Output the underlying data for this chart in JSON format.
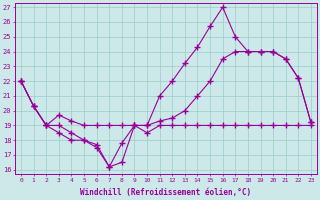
{
  "background_color": "#cce8e8",
  "grid_color": "#99cccc",
  "line_color": "#990099",
  "x_hours": [
    0,
    1,
    2,
    3,
    4,
    5,
    6,
    7,
    8,
    9,
    10,
    11,
    12,
    13,
    14,
    15,
    16,
    17,
    18,
    19,
    20,
    21,
    22,
    23
  ],
  "series1": [
    22,
    20.3,
    19.0,
    19.0,
    18.5,
    18.0,
    17.5,
    16.2,
    16.5,
    19.0,
    19.0,
    21.0,
    22.0,
    23.2,
    24.3,
    25.7,
    27.0,
    25.0,
    24.0,
    24.0,
    24.0,
    23.5,
    22.2,
    19.2
  ],
  "series2": [
    22,
    20.3,
    19.0,
    19.7,
    19.3,
    19.0,
    19.0,
    19.0,
    19.0,
    19.0,
    19.0,
    19.3,
    19.5,
    20.0,
    21.0,
    22.0,
    23.5,
    24.0,
    24.0,
    24.0,
    24.0,
    23.5,
    22.2,
    19.2
  ],
  "series3_x": [
    0,
    1,
    2,
    3,
    4,
    5,
    6,
    7,
    8,
    9,
    10,
    11,
    12,
    13,
    14,
    15,
    16,
    17,
    18,
    19,
    20,
    21,
    22,
    23
  ],
  "series3": [
    22,
    20.3,
    19.0,
    18.5,
    18.0,
    18.0,
    17.7,
    16.2,
    17.8,
    19.0,
    18.5,
    19.0,
    19.0,
    19.0,
    19.0,
    19.0,
    19.0,
    19.0,
    19.0,
    19.0,
    19.0,
    19.0,
    19.0,
    19.0
  ],
  "xlabel": "Windchill (Refroidissement éolien,°C)",
  "ylim_min": 16,
  "ylim_max": 27,
  "xlim_min": -0.5,
  "xlim_max": 23.5,
  "figwidth": 3.2,
  "figheight": 2.0,
  "dpi": 100
}
